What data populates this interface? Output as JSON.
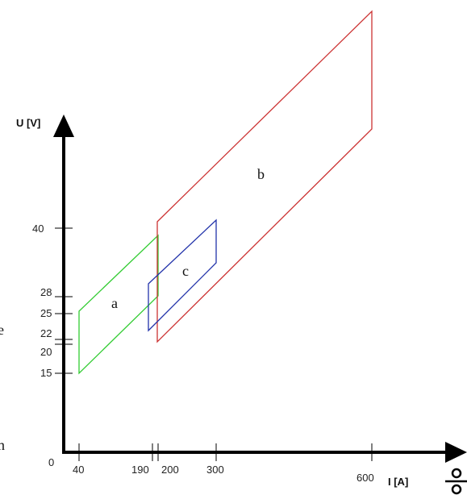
{
  "chart_data": {
    "type": "diagram",
    "x_axis": {
      "label": "I [A]",
      "origin_label": "0",
      "ticks": [
        {
          "value": 40,
          "label": "40"
        },
        {
          "value": 190,
          "label": "190"
        },
        {
          "value": 200,
          "label": "200"
        },
        {
          "value": 300,
          "label": "300"
        },
        {
          "value": 600,
          "label": "600"
        }
      ]
    },
    "y_axis": {
      "label": "U [V]",
      "ticks": [
        {
          "value": 15,
          "label": "15"
        },
        {
          "value": 20,
          "label": "20"
        },
        {
          "value": 22,
          "label": "22"
        },
        {
          "value": 25,
          "label": "25"
        },
        {
          "value": 28,
          "label": "28"
        },
        {
          "value": 40,
          "label": "40"
        }
      ]
    },
    "regions": [
      {
        "label": "a",
        "color": "#33cc33",
        "i_min": 40,
        "i_max": 200
      },
      {
        "label": "b",
        "color": "#cc3333",
        "i_min": 200,
        "i_max": 600
      },
      {
        "label": "c",
        "color": "#2233aa",
        "i_min": 190,
        "i_max": 300
      }
    ],
    "edge_text": [
      "e",
      "n"
    ],
    "symbol": "welding-symbol-icon"
  }
}
